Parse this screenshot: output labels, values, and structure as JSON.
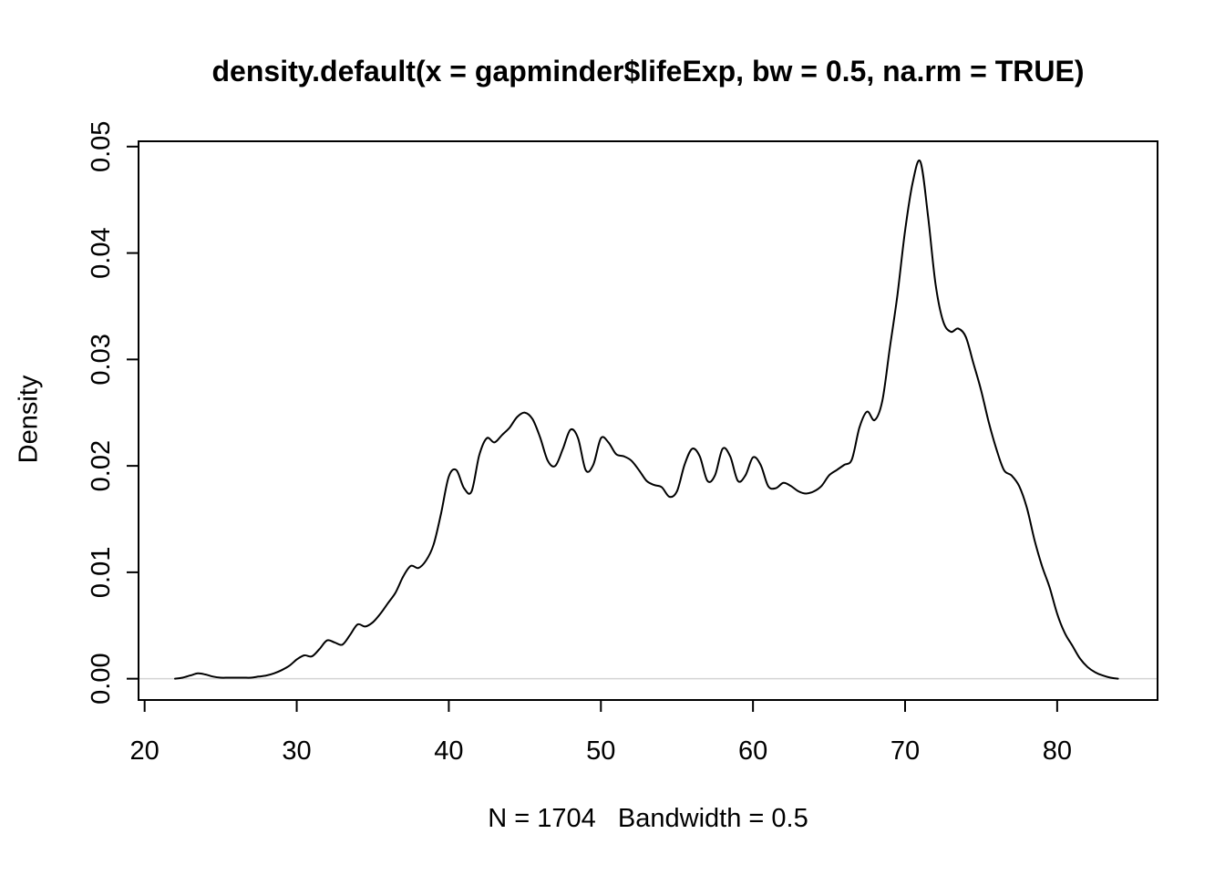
{
  "chart_data": {
    "type": "line",
    "title": "density.default(x = gapminder$lifeExp, bw = 0.5, na.rm = TRUE)",
    "xlabel": "N = 1704   Bandwidth = 0.5",
    "ylabel": "Density",
    "n": 1704,
    "bandwidth": 0.5,
    "xlim": [
      19.6,
      86.6
    ],
    "ylim": [
      -0.002,
      0.0505
    ],
    "xticks": [
      20,
      30,
      40,
      50,
      60,
      70,
      80
    ],
    "xtick_labels": [
      "20",
      "30",
      "40",
      "50",
      "60",
      "70",
      "80"
    ],
    "yticks": [
      0.0,
      0.01,
      0.02,
      0.03,
      0.04,
      0.05
    ],
    "ytick_labels": [
      "0.00",
      "0.01",
      "0.02",
      "0.03",
      "0.04",
      "0.05"
    ],
    "grid": false,
    "legend": "none",
    "line_color": "#000000",
    "zero_line_color": "#d4d4d4",
    "x": [
      22,
      22.5,
      23,
      23.5,
      24,
      24.5,
      25,
      25.5,
      26,
      26.5,
      27,
      27.5,
      28,
      28.5,
      29,
      29.5,
      30,
      30.5,
      31,
      31.5,
      32,
      32.5,
      33,
      33.5,
      34,
      34.5,
      35,
      35.5,
      36,
      36.5,
      37,
      37.5,
      38,
      38.5,
      39,
      39.5,
      40,
      40.5,
      41,
      41.5,
      42,
      42.5,
      43,
      43.5,
      44,
      44.5,
      45,
      45.5,
      46,
      46.5,
      47,
      47.5,
      48,
      48.5,
      49,
      49.5,
      50,
      50.5,
      51,
      51.5,
      52,
      52.5,
      53,
      53.5,
      54,
      54.5,
      55,
      55.5,
      56,
      56.5,
      57,
      57.5,
      58,
      58.5,
      59,
      59.5,
      60,
      60.5,
      61,
      61.5,
      62,
      62.5,
      63,
      63.5,
      64,
      64.5,
      65,
      65.5,
      66,
      66.5,
      67,
      67.5,
      68,
      68.5,
      69,
      69.5,
      70,
      70.5,
      71,
      71.5,
      72,
      72.5,
      73,
      73.5,
      74,
      74.5,
      75,
      75.5,
      76,
      76.5,
      77,
      77.5,
      78,
      78.5,
      79,
      79.5,
      80,
      80.5,
      81,
      81.5,
      82,
      82.5,
      83,
      83.5,
      84
    ],
    "y": [
      0.0,
      0.0001,
      0.0003,
      0.0005,
      0.0004,
      0.0002,
      0.0001,
      0.0001,
      0.0001,
      0.0001,
      0.0001,
      0.0002,
      0.0003,
      0.0005,
      0.0008,
      0.0012,
      0.0018,
      0.0022,
      0.0021,
      0.0028,
      0.0036,
      0.0034,
      0.0032,
      0.0041,
      0.0051,
      0.0049,
      0.0053,
      0.0061,
      0.0071,
      0.0081,
      0.0096,
      0.0106,
      0.0104,
      0.0111,
      0.0126,
      0.0156,
      0.019,
      0.0196,
      0.0179,
      0.0176,
      0.021,
      0.0226,
      0.0222,
      0.0229,
      0.0236,
      0.0246,
      0.025,
      0.0244,
      0.0227,
      0.0205,
      0.02,
      0.0216,
      0.0234,
      0.0226,
      0.0196,
      0.0201,
      0.0226,
      0.0222,
      0.0211,
      0.0209,
      0.0205,
      0.0196,
      0.0186,
      0.0182,
      0.018,
      0.0171,
      0.0176,
      0.0201,
      0.0216,
      0.0209,
      0.0186,
      0.0191,
      0.0216,
      0.0209,
      0.0186,
      0.0191,
      0.0208,
      0.0201,
      0.0181,
      0.0179,
      0.0184,
      0.0181,
      0.0176,
      0.0174,
      0.0176,
      0.0181,
      0.0191,
      0.0196,
      0.0201,
      0.0206,
      0.0236,
      0.0251,
      0.0243,
      0.0261,
      0.0311,
      0.0361,
      0.0421,
      0.0466,
      0.0486,
      0.0436,
      0.0371,
      0.0336,
      0.0326,
      0.0329,
      0.0321,
      0.0296,
      0.0271,
      0.0241,
      0.0216,
      0.0196,
      0.0191,
      0.0181,
      0.0161,
      0.0131,
      0.0106,
      0.0086,
      0.0061,
      0.0043,
      0.0031,
      0.0019,
      0.0011,
      0.0006,
      0.0003,
      0.0001,
      0.0
    ]
  }
}
